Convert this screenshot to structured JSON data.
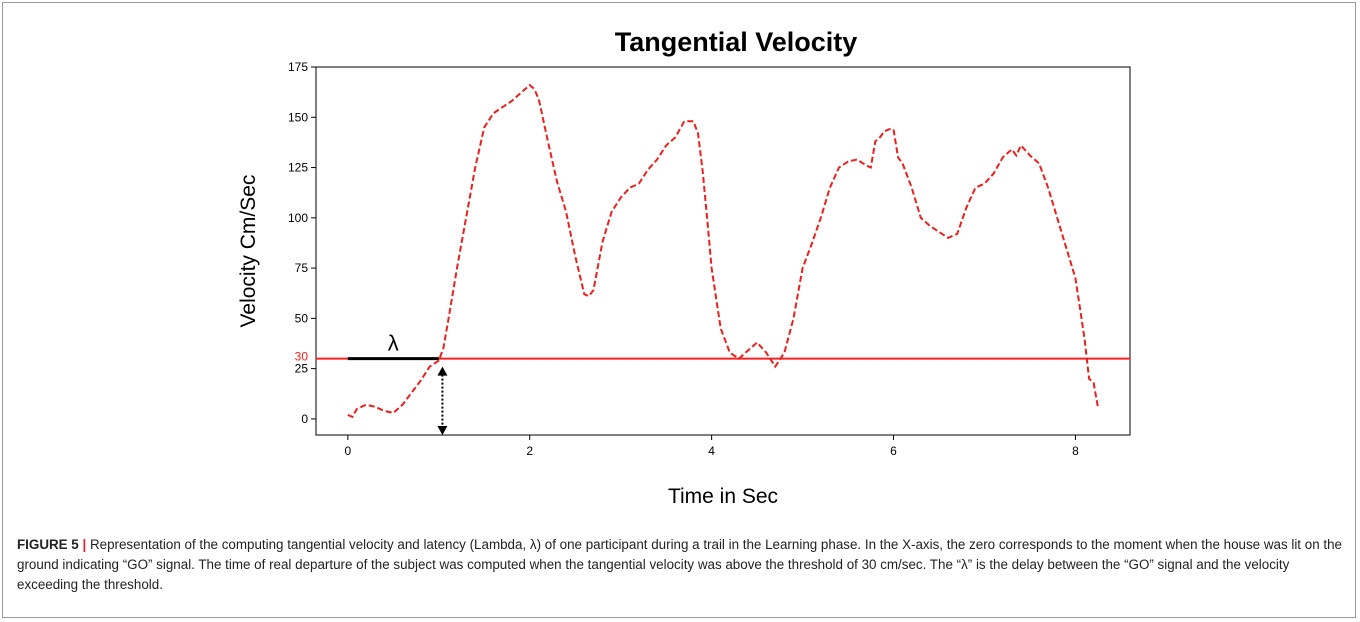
{
  "figure": {
    "label": "FIGURE 5",
    "separator": " | ",
    "caption": "Representation of the computing tangential velocity and latency (Lambda, λ) of one participant during a trail in the Learning phase. In the X-axis, the zero corresponds to the moment when the house was lit on the ground indicating “GO” signal. The time of real departure of the subject was computed when the tangential velocity was above the threshold of 30 cm/sec. The “λ” is the delay between the “GO” signal and the velocity exceeding the threshold."
  },
  "chart_data": {
    "type": "line",
    "title": "Tangential Velocity",
    "xlabel": "Time in Sec",
    "ylabel": "Velocity Cm/Sec",
    "xlim": [
      -0.35,
      8.6
    ],
    "ylim": [
      -8,
      175
    ],
    "xticks": [
      0,
      2,
      4,
      6,
      8
    ],
    "yticks": [
      0,
      25,
      50,
      75,
      100,
      125,
      150,
      175
    ],
    "threshold": {
      "value": 30,
      "label": "30",
      "color": "#ff2020"
    },
    "annotation": {
      "text": "λ",
      "x_start": 0.0,
      "x_end": 1.0,
      "y": 30,
      "arrow_x": 1.04,
      "arrow_y_top": 26,
      "arrow_y_bottom": -8
    },
    "series": [
      {
        "color": "#e8201e",
        "style": "dashed",
        "x": [
          0.0,
          0.05,
          0.1,
          0.2,
          0.3,
          0.4,
          0.5,
          0.6,
          0.7,
          0.8,
          0.9,
          1.0,
          1.05,
          1.1,
          1.2,
          1.3,
          1.4,
          1.5,
          1.6,
          1.7,
          1.8,
          1.9,
          2.0,
          2.05,
          2.1,
          2.2,
          2.3,
          2.4,
          2.5,
          2.6,
          2.65,
          2.7,
          2.8,
          2.9,
          3.0,
          3.1,
          3.2,
          3.3,
          3.4,
          3.5,
          3.6,
          3.7,
          3.8,
          3.85,
          3.9,
          3.95,
          4.0,
          4.1,
          4.2,
          4.3,
          4.4,
          4.5,
          4.6,
          4.7,
          4.8,
          4.9,
          5.0,
          5.1,
          5.2,
          5.3,
          5.4,
          5.5,
          5.6,
          5.7,
          5.75,
          5.8,
          5.85,
          5.9,
          5.95,
          6.0,
          6.05,
          6.1,
          6.2,
          6.3,
          6.4,
          6.5,
          6.6,
          6.7,
          6.8,
          6.9,
          7.0,
          7.1,
          7.2,
          7.3,
          7.35,
          7.4,
          7.5,
          7.6,
          7.7,
          7.8,
          7.9,
          8.0,
          8.05,
          8.1,
          8.15,
          8.2,
          8.25
        ],
        "y": [
          2,
          1,
          5,
          7,
          6,
          4,
          3,
          7,
          13,
          19,
          26,
          29,
          35,
          48,
          75,
          100,
          125,
          145,
          152,
          155,
          158,
          162,
          166,
          164,
          159,
          138,
          118,
          103,
          81,
          62,
          61,
          64,
          88,
          103,
          110,
          115,
          117,
          124,
          129,
          136,
          140,
          148,
          148,
          142,
          124,
          100,
          75,
          45,
          33,
          30,
          34,
          38,
          33,
          26,
          33,
          50,
          75,
          87,
          100,
          115,
          125,
          128,
          129,
          126,
          125,
          138,
          140,
          143,
          144,
          144,
          130,
          127,
          115,
          100,
          96,
          93,
          90,
          92,
          105,
          115,
          117,
          122,
          130,
          134,
          131,
          136,
          131,
          127,
          115,
          100,
          85,
          70,
          55,
          40,
          20,
          18,
          5
        ]
      }
    ]
  }
}
